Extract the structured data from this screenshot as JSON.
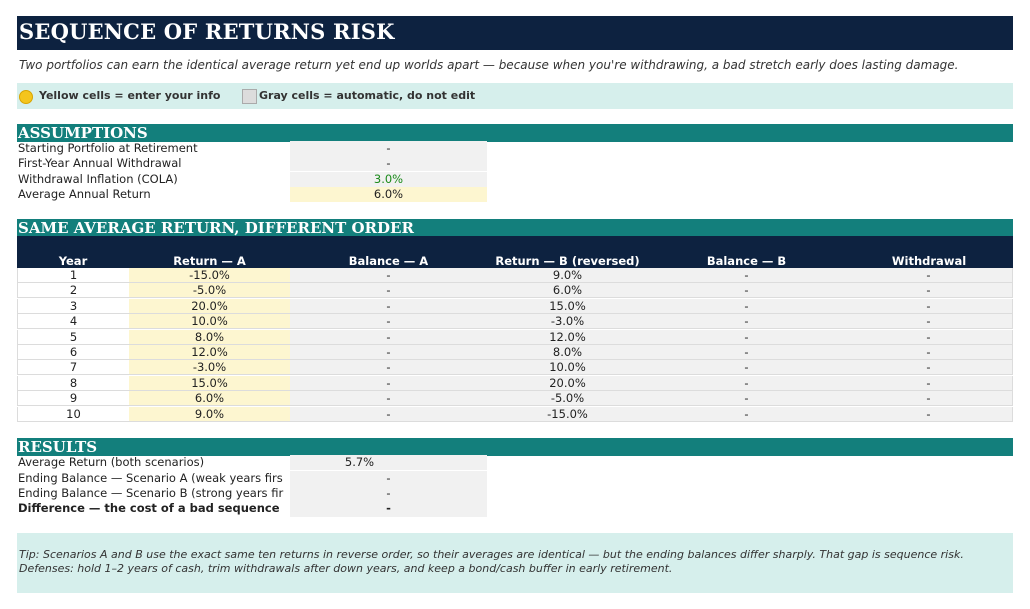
{
  "title": "SEQUENCE OF RETURNS RISK",
  "subtitle": "Two portfolios can earn the identical average return yet end up worlds apart — because when you're withdrawing, a bad stretch early does lasting damage.",
  "legend": {
    "yellow_label": "Yellow cells = enter your info",
    "gray_label": "Gray cells = automatic, do not edit",
    "yellow_color": "#f4c51d",
    "gray_color": "#dcdcdc"
  },
  "assumptions": {
    "header": "ASSUMPTIONS",
    "rows": [
      {
        "label": "Starting Portfolio at Retirement",
        "value": "-"
      },
      {
        "label": "First-Year Annual Withdrawal",
        "value": "-"
      },
      {
        "label": "Withdrawal Inflation (COLA)",
        "value": "3.0%"
      },
      {
        "label": "Average Annual Return",
        "value": "6.0%"
      }
    ]
  },
  "comparison": {
    "header": "SAME AVERAGE RETURN, DIFFERENT ORDER",
    "columns": [
      "Year",
      "Return — A",
      "Balance — A",
      "Return — B (reversed)",
      "Balance — B",
      "Withdrawal"
    ],
    "rows": [
      {
        "year": "1",
        "ret_a": "-15.0%",
        "bal_a": "-",
        "ret_b": "9.0%",
        "bal_b": "-",
        "withdrawal": "-"
      },
      {
        "year": "2",
        "ret_a": "-5.0%",
        "bal_a": "-",
        "ret_b": "6.0%",
        "bal_b": "-",
        "withdrawal": "-"
      },
      {
        "year": "3",
        "ret_a": "20.0%",
        "bal_a": "-",
        "ret_b": "15.0%",
        "bal_b": "-",
        "withdrawal": "-"
      },
      {
        "year": "4",
        "ret_a": "10.0%",
        "bal_a": "-",
        "ret_b": "-3.0%",
        "bal_b": "-",
        "withdrawal": "-"
      },
      {
        "year": "5",
        "ret_a": "8.0%",
        "bal_a": "-",
        "ret_b": "12.0%",
        "bal_b": "-",
        "withdrawal": "-"
      },
      {
        "year": "6",
        "ret_a": "12.0%",
        "bal_a": "-",
        "ret_b": "8.0%",
        "bal_b": "-",
        "withdrawal": "-"
      },
      {
        "year": "7",
        "ret_a": "-3.0%",
        "bal_a": "-",
        "ret_b": "10.0%",
        "bal_b": "-",
        "withdrawal": "-"
      },
      {
        "year": "8",
        "ret_a": "15.0%",
        "bal_a": "-",
        "ret_b": "20.0%",
        "bal_b": "-",
        "withdrawal": "-"
      },
      {
        "year": "9",
        "ret_a": "6.0%",
        "bal_a": "-",
        "ret_b": "-5.0%",
        "bal_b": "-",
        "withdrawal": "-"
      },
      {
        "year": "10",
        "ret_a": "9.0%",
        "bal_a": "-",
        "ret_b": "-15.0%",
        "bal_b": "-",
        "withdrawal": "-"
      }
    ]
  },
  "results": {
    "header": "RESULTS",
    "rows": [
      {
        "label": "Average Return (both scenarios)",
        "value": "5.7%"
      },
      {
        "label": "Ending Balance — Scenario A (weak years firs",
        "value": "-"
      },
      {
        "label": "Ending Balance — Scenario B (strong years fir",
        "value": "-"
      },
      {
        "label": "Difference — the cost of a bad sequence",
        "value": "-"
      }
    ]
  },
  "tip": "Tip: Scenarios A and B use the exact same ten returns in reverse order, so their averages are identical — but the ending balances differ sharply. That gap is sequence risk. Defenses: hold 1–2 years of cash, trim withdrawals after down years, and keep a bond/cash buffer in early retirement.",
  "colors": {
    "navy": "#0d2240",
    "teal": "#137f7c",
    "light_teal": "#d6efec",
    "input_yellow": "#fdf6d0",
    "auto_gray": "#f1f1f1",
    "positive_green": "#1a8a1a"
  }
}
